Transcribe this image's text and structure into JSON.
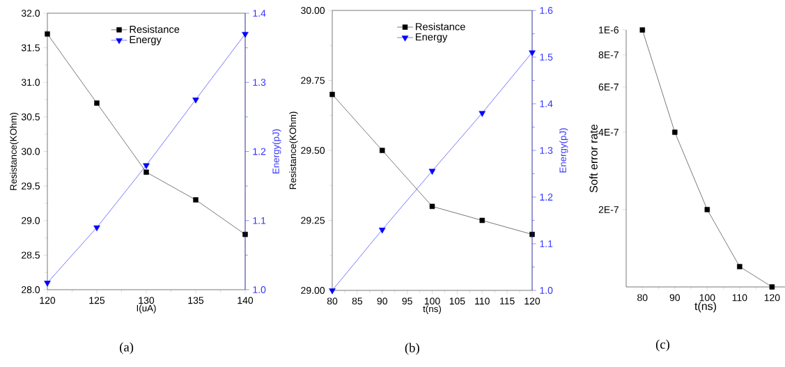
{
  "chart_data": [
    {
      "type": "line",
      "xlabel": "I(uA)",
      "ylabel": "Resistance(KOhm)",
      "y2label": "Energy(pJ)",
      "x": [
        120,
        125,
        130,
        135,
        140
      ],
      "xlim": [
        120,
        140
      ],
      "xticks": [
        120,
        125,
        130,
        135,
        140
      ],
      "ylim": [
        28,
        32
      ],
      "yticks": [
        {
          "value": 28,
          "label": "28.0"
        },
        28.5,
        {
          "value": 29,
          "label": "29.0"
        },
        29.5,
        {
          "value": 30,
          "label": "30.0"
        },
        30.5,
        {
          "value": 31,
          "label": "31.0"
        },
        31.5,
        {
          "value": 32,
          "label": "32.0"
        }
      ],
      "y2lim": [
        1.0,
        1.4
      ],
      "y2ticks": [
        {
          "value": 1,
          "label": "1.0"
        },
        1.1,
        1.2,
        1.3,
        1.4
      ],
      "legend": "top",
      "annotations": [
        "(a)"
      ],
      "series": [
        {
          "name": "Resistance",
          "color": "#000000",
          "marker": "square",
          "values": [
            31.7,
            30.7,
            29.7,
            29.3,
            28.8
          ]
        },
        {
          "name": "Energy",
          "color": "#0000ff",
          "marker": "triangle",
          "axis": "y2",
          "values": [
            1.01,
            1.09,
            1.18,
            1.275,
            1.37
          ]
        }
      ]
    },
    {
      "type": "line",
      "xlabel": "t(ns)",
      "ylabel": "Resistance(KOhm)",
      "y2label": "Energy(pJ)",
      "x": [
        80,
        90,
        100,
        110,
        120
      ],
      "xlim": [
        80,
        120
      ],
      "xticks": [
        80,
        85,
        90,
        95,
        100,
        105,
        110,
        115,
        120
      ],
      "ylim": [
        29,
        30
      ],
      "yticks": [
        {
          "value": 29,
          "label": "29.00"
        },
        29.25,
        {
          "value": 29.5,
          "label": "29.50"
        },
        29.75,
        {
          "value": 30,
          "label": "30.00"
        }
      ],
      "y2lim": [
        1.0,
        1.6
      ],
      "y2ticks": [
        {
          "value": 1,
          "label": "1.0"
        },
        1.1,
        1.2,
        1.3,
        1.4,
        1.5,
        1.6
      ],
      "legend": "top",
      "annotations": [
        "(b)"
      ],
      "series": [
        {
          "name": "Resistance",
          "color": "#000000",
          "marker": "square",
          "values": [
            29.7,
            29.5,
            29.3,
            29.25,
            29.2
          ]
        },
        {
          "name": "Energy",
          "color": "#0000ff",
          "marker": "triangle",
          "axis": "y2",
          "values": [
            1.0,
            1.13,
            1.256,
            1.38,
            1.51
          ]
        }
      ]
    },
    {
      "type": "line",
      "xlabel": "t(ns)",
      "ylabel": "Soft error rate",
      "log": "y",
      "x": [
        80,
        90,
        100,
        110,
        120
      ],
      "xlim": [
        75,
        124
      ],
      "xticks": [
        80,
        90,
        100,
        110,
        120
      ],
      "ylim": [
        1e-07,
        1e-06
      ],
      "yticks": [
        {
          "value": 2e-07,
          "label": "2E-7"
        },
        {
          "value": 4e-07,
          "label": "4E-7"
        },
        {
          "value": 6e-07,
          "label": "6E-7"
        },
        {
          "value": 8e-07,
          "label": "8E-7"
        },
        {
          "value": 1e-06,
          "label": "1E-6"
        }
      ],
      "annotations": [
        "(c)"
      ],
      "series": [
        {
          "color": "#000000",
          "marker": "square",
          "values": [
            1e-06,
            4e-07,
            2e-07,
            1.2e-07,
            1e-07
          ]
        }
      ]
    }
  ]
}
